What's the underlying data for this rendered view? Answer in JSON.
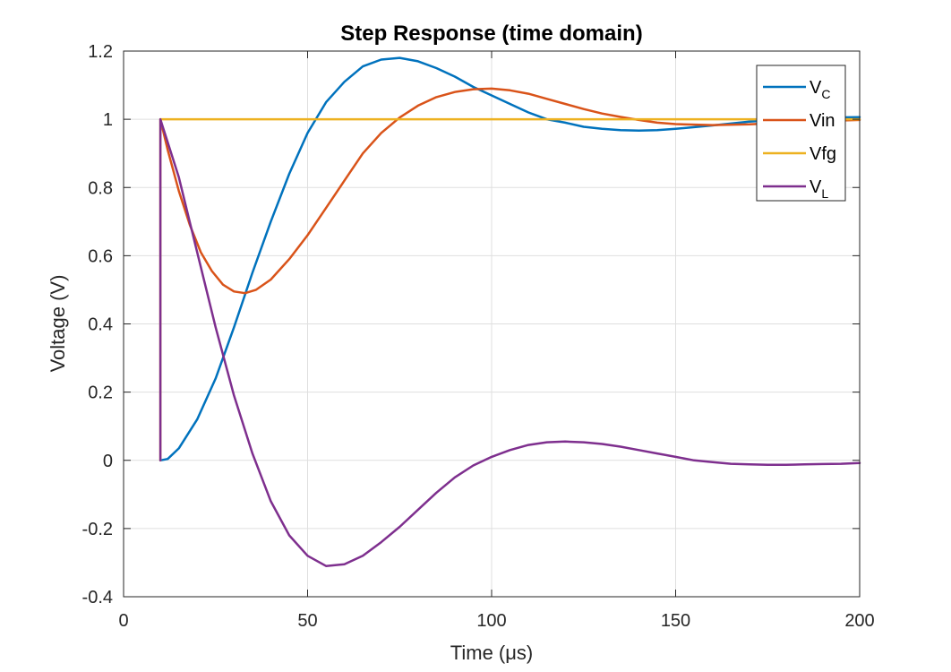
{
  "chart_data": {
    "type": "line",
    "title": "Step Response (time domain)",
    "xlabel": "Time (μs)",
    "ylabel": "Voltage (V)",
    "xlim": [
      0,
      200
    ],
    "ylim": [
      -0.4,
      1.2
    ],
    "xticks": [
      0,
      50,
      100,
      150,
      200
    ],
    "yticks": [
      -0.4,
      -0.2,
      0,
      0.2,
      0.4,
      0.6,
      0.8,
      1,
      1.2
    ],
    "xtick_labels": [
      "0",
      "50",
      "100",
      "150",
      "200"
    ],
    "ytick_labels": [
      "-0.4",
      "-0.2",
      "0",
      "0.2",
      "0.4",
      "0.6",
      "0.8",
      "1",
      "1.2"
    ],
    "grid": true,
    "legend_position": "top-right",
    "series": [
      {
        "name": "VC",
        "name_main": "V",
        "name_sub": "C",
        "color": "#0072BD",
        "points": [
          [
            10,
            0
          ],
          [
            12,
            0.004
          ],
          [
            15,
            0.035
          ],
          [
            20,
            0.12
          ],
          [
            25,
            0.24
          ],
          [
            30,
            0.39
          ],
          [
            35,
            0.55
          ],
          [
            40,
            0.7
          ],
          [
            45,
            0.84
          ],
          [
            50,
            0.96
          ],
          [
            55,
            1.05
          ],
          [
            60,
            1.11
          ],
          [
            65,
            1.155
          ],
          [
            70,
            1.175
          ],
          [
            75,
            1.18
          ],
          [
            80,
            1.17
          ],
          [
            85,
            1.15
          ],
          [
            90,
            1.125
          ],
          [
            95,
            1.095
          ],
          [
            100,
            1.07
          ],
          [
            105,
            1.045
          ],
          [
            110,
            1.02
          ],
          [
            115,
            1.0
          ],
          [
            120,
            0.99
          ],
          [
            125,
            0.978
          ],
          [
            130,
            0.972
          ],
          [
            135,
            0.968
          ],
          [
            140,
            0.967
          ],
          [
            145,
            0.968
          ],
          [
            150,
            0.972
          ],
          [
            160,
            0.982
          ],
          [
            170,
            0.993
          ],
          [
            180,
            1.0
          ],
          [
            190,
            1.005
          ],
          [
            200,
            1.006
          ]
        ]
      },
      {
        "name": "Vin",
        "name_main": "Vin",
        "name_sub": "",
        "color": "#D95319",
        "points": [
          [
            10,
            1.0
          ],
          [
            12,
            0.91
          ],
          [
            15,
            0.79
          ],
          [
            18,
            0.69
          ],
          [
            21,
            0.61
          ],
          [
            24,
            0.555
          ],
          [
            27,
            0.515
          ],
          [
            30,
            0.495
          ],
          [
            33,
            0.49
          ],
          [
            36,
            0.5
          ],
          [
            40,
            0.53
          ],
          [
            45,
            0.59
          ],
          [
            50,
            0.66
          ],
          [
            55,
            0.74
          ],
          [
            60,
            0.82
          ],
          [
            65,
            0.9
          ],
          [
            70,
            0.96
          ],
          [
            75,
            1.005
          ],
          [
            80,
            1.04
          ],
          [
            85,
            1.065
          ],
          [
            90,
            1.08
          ],
          [
            95,
            1.088
          ],
          [
            100,
            1.09
          ],
          [
            105,
            1.085
          ],
          [
            110,
            1.075
          ],
          [
            115,
            1.06
          ],
          [
            120,
            1.045
          ],
          [
            125,
            1.03
          ],
          [
            130,
            1.017
          ],
          [
            135,
            1.007
          ],
          [
            140,
            0.998
          ],
          [
            145,
            0.99
          ],
          [
            150,
            0.986
          ],
          [
            160,
            0.983
          ],
          [
            170,
            0.985
          ],
          [
            180,
            0.99
          ],
          [
            190,
            0.995
          ],
          [
            200,
            0.998
          ]
        ]
      },
      {
        "name": "Vfg",
        "name_main": "Vfg",
        "name_sub": "",
        "color": "#EDB120",
        "points": [
          [
            10,
            0
          ],
          [
            10,
            1.0
          ],
          [
            200,
            1.0
          ]
        ]
      },
      {
        "name": "VL",
        "name_main": "V",
        "name_sub": "L",
        "color": "#7E2F8E",
        "points": [
          [
            10,
            0
          ],
          [
            10,
            1.0
          ],
          [
            15,
            0.83
          ],
          [
            20,
            0.61
          ],
          [
            25,
            0.39
          ],
          [
            30,
            0.19
          ],
          [
            35,
            0.02
          ],
          [
            40,
            -0.12
          ],
          [
            45,
            -0.22
          ],
          [
            50,
            -0.28
          ],
          [
            55,
            -0.31
          ],
          [
            60,
            -0.305
          ],
          [
            65,
            -0.28
          ],
          [
            70,
            -0.24
          ],
          [
            75,
            -0.195
          ],
          [
            80,
            -0.145
          ],
          [
            85,
            -0.095
          ],
          [
            90,
            -0.05
          ],
          [
            95,
            -0.015
          ],
          [
            100,
            0.01
          ],
          [
            105,
            0.03
          ],
          [
            110,
            0.045
          ],
          [
            115,
            0.053
          ],
          [
            120,
            0.055
          ],
          [
            125,
            0.053
          ],
          [
            130,
            0.048
          ],
          [
            135,
            0.04
          ],
          [
            140,
            0.03
          ],
          [
            145,
            0.02
          ],
          [
            150,
            0.01
          ],
          [
            155,
            0.0
          ],
          [
            160,
            -0.005
          ],
          [
            165,
            -0.01
          ],
          [
            170,
            -0.012
          ],
          [
            175,
            -0.013
          ],
          [
            180,
            -0.013
          ],
          [
            185,
            -0.012
          ],
          [
            190,
            -0.011
          ],
          [
            195,
            -0.01
          ],
          [
            200,
            -0.008
          ]
        ]
      }
    ]
  }
}
